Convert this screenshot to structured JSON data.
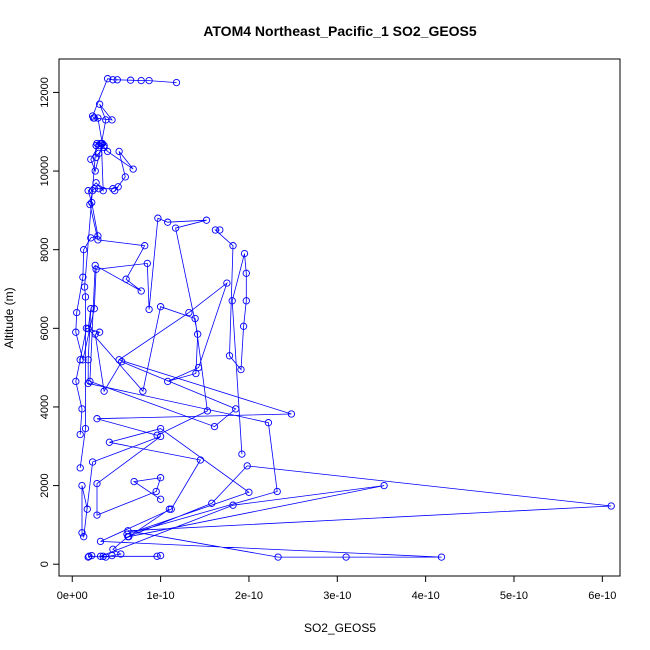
{
  "chart_data": {
    "type": "line",
    "title": "ATOM4 Northeast_Pacific_1 SO2_GEOS5",
    "xlabel": "SO2_GEOS5",
    "ylabel": "Altitude (m)",
    "xlim": [
      -1.5e-11,
      6.2e-10
    ],
    "ylim": [
      -300,
      12850
    ],
    "x_ticks": [
      0,
      1e-10,
      2e-10,
      3e-10,
      4e-10,
      5e-10,
      6e-10
    ],
    "x_tick_labels": [
      "0e+00",
      "1e-10",
      "2e-10",
      "3e-10",
      "4e-10",
      "5e-10",
      "6e-10"
    ],
    "y_ticks": [
      0,
      2000,
      4000,
      6000,
      8000,
      10000,
      12000
    ],
    "y_tick_labels": [
      "0",
      "2000",
      "4000",
      "6000",
      "8000",
      "10000",
      "12000"
    ],
    "grid": false,
    "line_color": "#0000ff",
    "marker": "open-circle",
    "series": [
      {
        "points": [
          [
            1.8e-11,
            180
          ],
          [
            2.2e-11,
            220
          ],
          [
            1.9e-11,
            200
          ],
          [
            3.8e-11,
            180
          ],
          [
            4.5e-11,
            220
          ],
          [
            5.5e-11,
            260
          ],
          [
            4.6e-11,
            380
          ],
          [
            6.3e-11,
            700
          ],
          [
            1.58e-10,
            1550
          ],
          [
            1.98e-10,
            2500
          ],
          [
            6.1e-10,
            1480
          ],
          [
            6.3e-11,
            850
          ],
          [
            2.33e-10,
            180
          ],
          [
            3.1e-10,
            180
          ],
          [
            4.18e-10,
            180
          ],
          [
            3.2e-11,
            580
          ],
          [
            1.12e-10,
            1400
          ],
          [
            1.45e-10,
            2650
          ],
          [
            4.2e-11,
            3100
          ],
          [
            1e-10,
            3450
          ],
          [
            2e-10,
            1830
          ],
          [
            6.2e-11,
            760
          ],
          [
            2.32e-10,
            1850
          ],
          [
            2.22e-10,
            3600
          ],
          [
            1.8e-11,
            4600
          ],
          [
            1.8e-11,
            5200
          ],
          [
            2.1e-11,
            6500
          ],
          [
            1.8e-11,
            5990
          ],
          [
            8e-11,
            4400
          ],
          [
            1e-10,
            6550
          ],
          [
            1.39e-10,
            6250
          ],
          [
            1.53e-10,
            3900
          ],
          [
            9.6e-11,
            3280
          ],
          [
            2.8e-11,
            3700
          ],
          [
            2.48e-10,
            3820
          ],
          [
            5.3e-11,
            5200
          ],
          [
            1.32e-10,
            6400
          ],
          [
            1.75e-10,
            7150
          ],
          [
            1.43e-10,
            5000
          ],
          [
            1.08e-10,
            4650
          ],
          [
            1.4e-10,
            4850
          ],
          [
            1.42e-10,
            5850
          ],
          [
            1.17e-10,
            8550
          ],
          [
            1.52e-10,
            8750
          ],
          [
            1.08e-10,
            8700
          ],
          [
            9.7e-11,
            8800
          ],
          [
            8.7e-11,
            6480
          ],
          [
            8.5e-11,
            7650
          ],
          [
            2.7e-11,
            7500
          ],
          [
            2.5e-11,
            6500
          ],
          [
            1.2e-11,
            5200
          ],
          [
            4e-12,
            5900
          ],
          [
            5e-12,
            6400
          ],
          [
            1.2e-11,
            7300
          ],
          [
            1.3e-11,
            8000
          ],
          [
            2.1e-11,
            8300
          ],
          [
            2.9e-11,
            8350
          ],
          [
            2.2e-11,
            9200
          ],
          [
            1.8e-11,
            9500
          ],
          [
            2.7e-11,
            9700
          ],
          [
            3.5e-11,
            9500
          ],
          [
            3.3e-11,
            10700
          ],
          [
            3.8e-11,
            11300
          ],
          [
            3.1e-11,
            11700
          ],
          [
            4.5e-11,
            11300
          ],
          [
            2.4e-11,
            11350
          ],
          [
            2.3e-11,
            11400
          ],
          [
            4e-11,
            12350
          ],
          [
            4.6e-11,
            12320
          ],
          [
            5.1e-11,
            12320
          ],
          [
            6.6e-11,
            12310
          ],
          [
            7.8e-11,
            12300
          ],
          [
            8.7e-11,
            12300
          ],
          [
            1.18e-10,
            12250
          ]
        ]
      },
      {
        "points": [
          [
            9e-12,
            3300
          ],
          [
            1.1e-11,
            3950
          ],
          [
            4e-12,
            4650
          ],
          [
            9e-12,
            5200
          ],
          [
            1.6e-11,
            6000
          ],
          [
            3.1e-11,
            5900
          ],
          [
            2.6e-11,
            5850
          ],
          [
            3.6e-11,
            4400
          ],
          [
            5.6e-11,
            5150
          ],
          [
            1.85e-10,
            3950
          ],
          [
            1.61e-10,
            3500
          ],
          [
            2e-11,
            4650
          ],
          [
            2.6e-11,
            7600
          ],
          [
            7.8e-11,
            6950
          ],
          [
            6.1e-11,
            7250
          ],
          [
            8.2e-11,
            8100
          ],
          [
            2.9e-11,
            8250
          ],
          [
            2e-11,
            9150
          ],
          [
            2.3e-11,
            9500
          ],
          [
            2.5e-11,
            9550
          ],
          [
            3e-11,
            9550
          ],
          [
            4.6e-11,
            9550
          ],
          [
            5.2e-11,
            9600
          ],
          [
            4.8e-11,
            9500
          ],
          [
            6e-11,
            9850
          ],
          [
            5.3e-11,
            10500
          ],
          [
            6.9e-11,
            10050
          ],
          [
            4e-11,
            10500
          ],
          [
            3.6e-11,
            10600
          ],
          [
            3e-11,
            10650
          ],
          [
            2.1e-11,
            10300
          ],
          [
            2.6e-11,
            10000
          ],
          [
            3.4e-11,
            10700
          ],
          [
            2.9e-11,
            11350
          ],
          [
            2.5e-11,
            11350
          ]
        ]
      },
      {
        "points": [
          [
            1.92e-10,
            2800
          ],
          [
            1.81e-10,
            6700
          ],
          [
            1.95e-10,
            7900
          ],
          [
            1.97e-10,
            7400
          ],
          [
            1.97e-10,
            6700
          ],
          [
            1.94e-10,
            6050
          ],
          [
            1.91e-10,
            4950
          ],
          [
            1.78e-10,
            5300
          ],
          [
            1.82e-10,
            8100
          ],
          [
            1.62e-10,
            8500
          ],
          [
            1.67e-10,
            8500
          ]
        ]
      },
      {
        "points": [
          [
            1.7e-11,
            1400
          ],
          [
            1.1e-11,
            2000
          ],
          [
            1.1e-11,
            800
          ],
          [
            1.3e-11,
            700
          ],
          [
            2.3e-11,
            2600
          ],
          [
            1e-10,
            3250
          ],
          [
            2.8e-11,
            2050
          ],
          [
            2.8e-11,
            1250
          ],
          [
            9.5e-11,
            1850
          ],
          [
            1e-10,
            2200
          ],
          [
            7e-11,
            2100
          ],
          [
            1e-10,
            1650
          ]
        ]
      },
      {
        "points": [
          [
            1e-10,
            220
          ],
          [
            9.6e-11,
            200
          ],
          [
            3.5e-11,
            200
          ],
          [
            3.2e-11,
            200
          ],
          [
            1.82e-10,
            1500
          ],
          [
            3.53e-10,
            2000
          ],
          [
            6.4e-11,
            700
          ],
          [
            1.1e-10,
            1400
          ]
        ]
      },
      {
        "points": [
          [
            9e-12,
            2450
          ],
          [
            1.5e-11,
            3450
          ],
          [
            1.5e-11,
            6800
          ],
          [
            1.4e-11,
            7050
          ],
          [
            2.7e-11,
            10650
          ],
          [
            2.8e-11,
            10700
          ],
          [
            3.2e-11,
            10700
          ],
          [
            3.6e-11,
            10650
          ],
          [
            3e-11,
            10450
          ],
          [
            2.7e-11,
            10350
          ]
        ]
      }
    ]
  }
}
